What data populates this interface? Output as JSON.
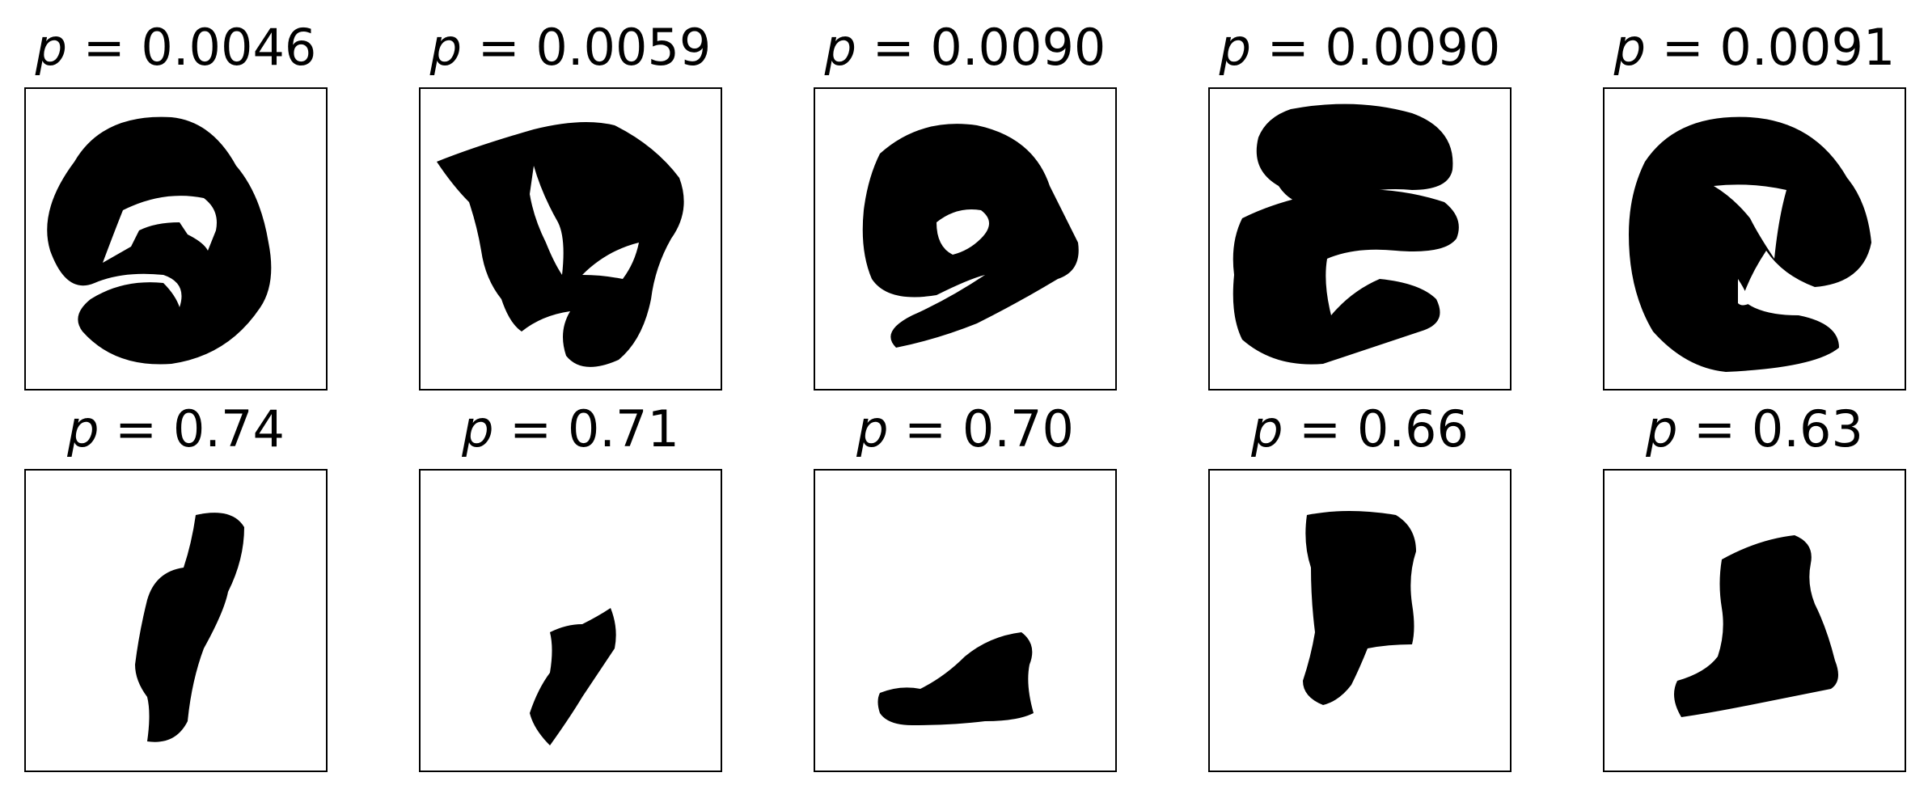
{
  "panels": [
    {
      "p_label": "p",
      "eq": "=",
      "value": "0.0046",
      "shape": "ring-hook"
    },
    {
      "p_label": "p",
      "eq": "=",
      "value": "0.0059",
      "shape": "branching"
    },
    {
      "p_label": "p",
      "eq": "=",
      "value": "0.0090",
      "shape": "spiral-nine"
    },
    {
      "p_label": "p",
      "eq": "=",
      "value": "0.0090",
      "shape": "stacked-bands"
    },
    {
      "p_label": "p",
      "eq": "=",
      "value": "0.0091",
      "shape": "curled-ring"
    },
    {
      "p_label": "p",
      "eq": "=",
      "value": "0.74",
      "shape": "tall-sliver"
    },
    {
      "p_label": "p",
      "eq": "=",
      "value": "0.71",
      "shape": "small-sliver"
    },
    {
      "p_label": "p",
      "eq": "=",
      "value": "0.70",
      "shape": "flat-blob"
    },
    {
      "p_label": "p",
      "eq": "=",
      "value": "0.66",
      "shape": "block-leg"
    },
    {
      "p_label": "p",
      "eq": "=",
      "value": "0.63",
      "shape": "wide-bell"
    }
  ]
}
